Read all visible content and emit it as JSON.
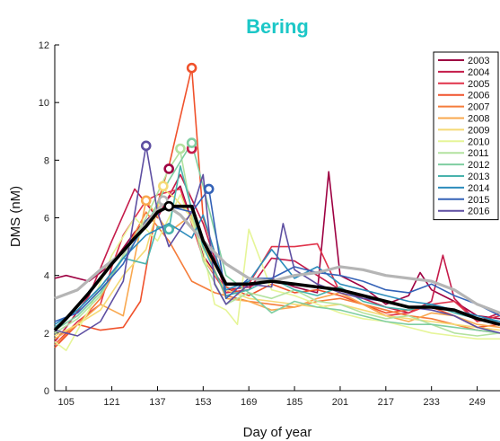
{
  "chart_data": {
    "type": "line",
    "title": "Bering",
    "title_color": "#1cc7c7",
    "xlabel": "Day of year",
    "ylabel": "DMS (nM)",
    "xlim": [
      101,
      257
    ],
    "ylim": [
      0,
      12
    ],
    "xticks": [
      105,
      121,
      137,
      153,
      169,
      185,
      201,
      217,
      233,
      249
    ],
    "yticks": [
      0,
      2,
      4,
      6,
      8,
      10,
      12
    ],
    "legend_position": "top-right",
    "series": [
      {
        "name": "2003",
        "color": "#9e0142",
        "x": [
          101,
          105,
          113,
          121,
          129,
          137,
          145,
          153,
          161,
          169,
          177,
          185,
          193,
          197,
          201,
          209,
          217,
          225,
          229,
          233,
          237,
          241,
          249,
          257
        ],
        "y": [
          3.9,
          4.0,
          3.8,
          4.4,
          5.5,
          6.3,
          7.1,
          4.7,
          3.5,
          3.6,
          3.9,
          3.6,
          3.4,
          7.6,
          4.0,
          3.6,
          3.0,
          3.3,
          4.1,
          3.5,
          3.3,
          3.1,
          2.6,
          2.5
        ],
        "peak": [
          141,
          7.7
        ]
      },
      {
        "name": "2004",
        "color": "#c51b4a",
        "x": [
          101,
          105,
          113,
          121,
          129,
          137,
          145,
          153,
          161,
          169,
          177,
          185,
          193,
          201,
          209,
          217,
          225,
          233,
          237,
          241,
          249,
          257
        ],
        "y": [
          1.7,
          2.2,
          3.3,
          5.2,
          7.0,
          6.0,
          7.5,
          5.8,
          3.4,
          3.5,
          4.6,
          4.5,
          4.0,
          3.5,
          3.2,
          2.9,
          2.7,
          3.1,
          4.7,
          3.2,
          2.4,
          2.7
        ],
        "peak": [
          149,
          8.4
        ]
      },
      {
        "name": "2005",
        "color": "#e0334a",
        "x": [
          101,
          109,
          117,
          121,
          125,
          133,
          137,
          145,
          153,
          161,
          169,
          177,
          185,
          193,
          201,
          209,
          217,
          225,
          233,
          241,
          249,
          257
        ],
        "y": [
          1.6,
          2.4,
          3.0,
          4.3,
          5.4,
          6.6,
          6.8,
          7.0,
          4.6,
          3.4,
          3.7,
          5.0,
          5.0,
          5.1,
          3.4,
          3.0,
          2.6,
          2.7,
          3.0,
          3.1,
          2.4,
          2.6
        ]
      },
      {
        "name": "2006",
        "color": "#f0522c",
        "x": [
          101,
          109,
          117,
          125,
          131,
          137,
          141,
          145,
          149,
          153,
          161,
          169,
          177,
          185,
          193,
          201,
          209,
          217,
          225,
          233,
          241,
          249,
          257
        ],
        "y": [
          1.5,
          2.3,
          2.1,
          2.2,
          3.1,
          6.5,
          7.8,
          9.5,
          11.2,
          6.0,
          3.6,
          3.3,
          3.7,
          3.4,
          3.5,
          3.3,
          3.0,
          2.7,
          2.8,
          2.9,
          2.6,
          2.2,
          2.3
        ],
        "peak": [
          149,
          11.2
        ]
      },
      {
        "name": "2007",
        "color": "#f57d3b",
        "x": [
          101,
          109,
          117,
          125,
          133,
          141,
          149,
          157,
          165,
          169,
          177,
          185,
          193,
          201,
          209,
          217,
          225,
          233,
          241,
          249,
          257
        ],
        "y": [
          1.6,
          2.3,
          3.2,
          4.7,
          6.2,
          5.2,
          3.8,
          3.4,
          3.2,
          3.1,
          3.0,
          2.9,
          3.1,
          3.2,
          3.0,
          2.8,
          2.6,
          2.5,
          2.3,
          2.1,
          2.0
        ]
      },
      {
        "name": "2008",
        "color": "#f9a84f",
        "x": [
          101,
          109,
          117,
          125,
          133,
          141,
          149,
          157,
          161,
          169,
          177,
          185,
          193,
          201,
          209,
          217,
          225,
          233,
          241,
          249,
          257
        ],
        "y": [
          1.8,
          2.3,
          3.0,
          2.6,
          6.6,
          5.5,
          6.1,
          4.2,
          3.2,
          3.1,
          2.8,
          2.9,
          3.2,
          3.4,
          3.0,
          2.6,
          2.4,
          2.7,
          2.6,
          2.3,
          2.2
        ],
        "peak": [
          133,
          6.6
        ]
      },
      {
        "name": "2009",
        "color": "#f5da76",
        "x": [
          101,
          109,
          117,
          125,
          133,
          139,
          143,
          149,
          153,
          161,
          169,
          177,
          185,
          193,
          201,
          209,
          217,
          225,
          233,
          241,
          249,
          257
        ],
        "y": [
          1.9,
          2.3,
          2.8,
          4.0,
          4.9,
          7.0,
          6.7,
          6.0,
          4.6,
          3.5,
          3.2,
          3.1,
          3.0,
          2.9,
          3.0,
          2.8,
          2.6,
          2.5,
          2.4,
          2.3,
          2.2,
          2.1
        ],
        "peak": [
          139,
          7.1
        ]
      },
      {
        "name": "2010",
        "color": "#e6f598",
        "x": [
          101,
          105,
          113,
          121,
          129,
          137,
          145,
          153,
          157,
          161,
          165,
          169,
          177,
          185,
          193,
          201,
          209,
          217,
          225,
          233,
          241,
          249,
          257
        ],
        "y": [
          1.7,
          1.4,
          2.8,
          4.7,
          6.0,
          5.2,
          6.8,
          4.9,
          3.0,
          2.8,
          2.3,
          5.6,
          3.5,
          3.3,
          3.0,
          2.7,
          2.5,
          2.4,
          2.2,
          2.0,
          1.9,
          1.8,
          1.8
        ]
      },
      {
        "name": "2011",
        "color": "#b3e29f",
        "x": [
          101,
          109,
          117,
          125,
          133,
          141,
          145,
          149,
          153,
          161,
          169,
          177,
          185,
          193,
          201,
          209,
          217,
          225,
          233,
          241,
          249,
          257
        ],
        "y": [
          2.0,
          2.5,
          3.3,
          4.7,
          6.0,
          7.7,
          8.3,
          6.2,
          4.5,
          3.0,
          3.4,
          3.2,
          3.5,
          3.1,
          3.0,
          2.7,
          2.5,
          2.6,
          2.3,
          2.0,
          1.9,
          2.0
        ],
        "peak": [
          145,
          8.4
        ]
      },
      {
        "name": "2012",
        "color": "#7fcea1",
        "x": [
          101,
          109,
          117,
          125,
          133,
          141,
          149,
          153,
          161,
          169,
          177,
          185,
          193,
          201,
          209,
          217,
          225,
          233,
          241,
          249,
          257
        ],
        "y": [
          2.1,
          2.6,
          3.4,
          4.6,
          5.7,
          7.3,
          8.6,
          7.1,
          4.0,
          3.4,
          2.7,
          3.1,
          2.9,
          2.8,
          2.6,
          2.4,
          2.3,
          2.3,
          2.2,
          2.1,
          2.0
        ],
        "peak": [
          149,
          8.6
        ]
      },
      {
        "name": "2013",
        "color": "#49b3ad",
        "x": [
          101,
          109,
          117,
          125,
          133,
          137,
          141,
          145,
          149,
          153,
          161,
          169,
          177,
          185,
          193,
          201,
          209,
          217,
          225,
          233,
          241,
          249,
          257
        ],
        "y": [
          2.2,
          2.8,
          3.6,
          4.6,
          4.4,
          5.7,
          5.6,
          7.8,
          6.3,
          5.0,
          3.3,
          3.5,
          3.9,
          3.5,
          3.3,
          3.6,
          3.1,
          2.9,
          2.8,
          3.0,
          2.7,
          2.5,
          2.4
        ],
        "peak": [
          141,
          5.6
        ]
      },
      {
        "name": "2014",
        "color": "#2c8cbc",
        "x": [
          101,
          109,
          117,
          125,
          133,
          141,
          149,
          153,
          161,
          169,
          177,
          185,
          193,
          201,
          209,
          217,
          225,
          233,
          241,
          249,
          257
        ],
        "y": [
          2.3,
          2.8,
          3.6,
          4.6,
          5.4,
          5.8,
          5.3,
          6.1,
          3.5,
          3.8,
          4.9,
          3.9,
          4.3,
          3.7,
          3.5,
          3.3,
          3.1,
          3.0,
          2.8,
          2.6,
          2.4
        ]
      },
      {
        "name": "2015",
        "color": "#3462b7",
        "x": [
          101,
          109,
          117,
          125,
          133,
          141,
          149,
          155,
          161,
          169,
          177,
          185,
          193,
          201,
          209,
          217,
          225,
          233,
          241,
          249,
          257
        ],
        "y": [
          2.4,
          2.7,
          3.5,
          4.4,
          5.9,
          6.4,
          6.2,
          7.0,
          3.2,
          3.9,
          3.9,
          4.3,
          4.1,
          4.0,
          3.8,
          3.5,
          3.4,
          3.7,
          3.3,
          3.0,
          2.6
        ],
        "peak": [
          155,
          7.0
        ]
      },
      {
        "name": "2016",
        "color": "#5e4fa2",
        "x": [
          101,
          109,
          117,
          125,
          133,
          137,
          141,
          149,
          153,
          157,
          161,
          169,
          177,
          181,
          185,
          193,
          201,
          209,
          217,
          225,
          233,
          241,
          249,
          257
        ],
        "y": [
          2.1,
          1.9,
          2.4,
          3.8,
          8.5,
          6.2,
          5.0,
          6.2,
          7.5,
          3.7,
          3.0,
          3.7,
          3.6,
          5.8,
          4.2,
          3.7,
          3.4,
          3.2,
          3.1,
          2.9,
          2.8,
          2.6,
          2.2,
          2.0
        ],
        "peak": [
          133,
          8.5
        ]
      },
      {
        "name": "",
        "color": "#b5b5b5",
        "x": [
          101,
          109,
          117,
          125,
          133,
          139,
          145,
          153,
          161,
          169,
          177,
          185,
          193,
          201,
          209,
          217,
          225,
          233,
          241,
          249,
          257
        ],
        "y": [
          3.2,
          3.5,
          4.2,
          4.8,
          5.8,
          6.5,
          6.1,
          5.2,
          4.4,
          3.9,
          3.8,
          4.0,
          4.1,
          4.3,
          4.2,
          4.0,
          3.9,
          3.8,
          3.5,
          3.0,
          2.7
        ],
        "peak": [
          139,
          6.6
        ],
        "width": 3.2
      },
      {
        "name": "",
        "color": "#000000",
        "x": [
          101,
          105,
          113,
          121,
          129,
          133,
          137,
          141,
          149,
          153,
          161,
          169,
          177,
          185,
          193,
          201,
          209,
          217,
          225,
          233,
          241,
          249,
          257
        ],
        "y": [
          2.1,
          2.5,
          3.4,
          4.4,
          5.3,
          5.7,
          6.2,
          6.4,
          6.4,
          5.2,
          3.7,
          3.7,
          3.8,
          3.7,
          3.6,
          3.5,
          3.3,
          3.1,
          2.9,
          2.9,
          2.8,
          2.5,
          2.3
        ],
        "peak": [
          141,
          6.4
        ],
        "width": 3.6
      }
    ]
  }
}
